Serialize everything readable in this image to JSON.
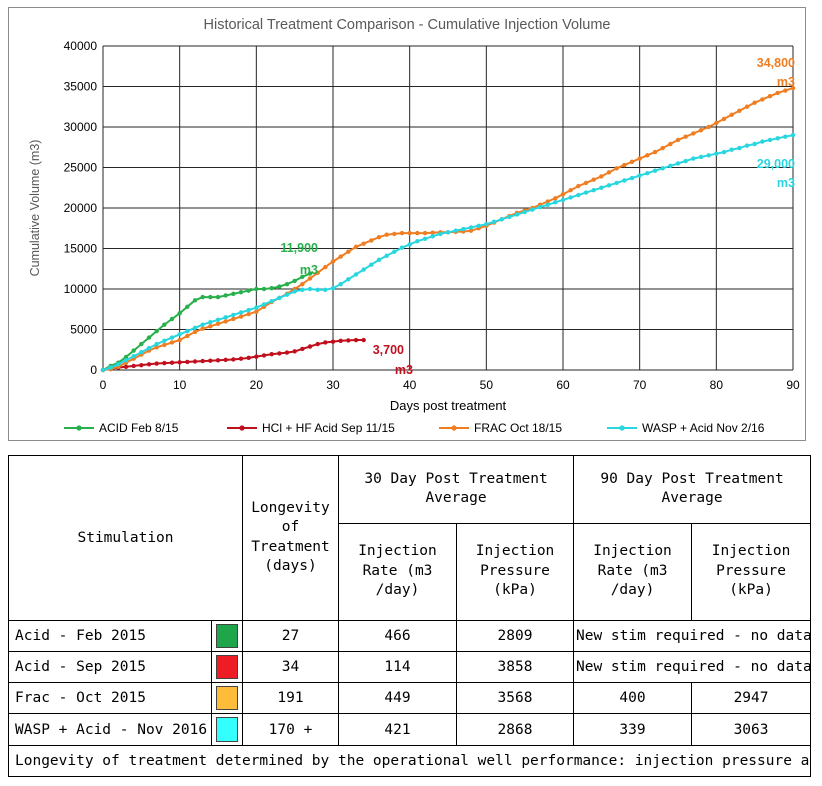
{
  "chart_data": {
    "type": "line",
    "title": "Historical Treatment Comparison - Cumulative Injection Volume",
    "xlabel": "Days post treatment",
    "ylabel": "Cumulative Volume (m3)",
    "xlim": [
      0,
      90
    ],
    "ylim": [
      0,
      40000
    ],
    "xticks": [
      0,
      10,
      20,
      30,
      40,
      50,
      60,
      70,
      80,
      90
    ],
    "yticks": [
      0,
      5000,
      10000,
      15000,
      20000,
      25000,
      30000,
      35000,
      40000
    ],
    "grid": true,
    "legend_position": "bottom",
    "series": [
      {
        "name": "ACID Feb 8/15",
        "color": "#27b04b",
        "x": [
          0,
          1,
          2,
          3,
          4,
          5,
          6,
          7,
          8,
          9,
          10,
          11,
          12,
          13,
          14,
          15,
          16,
          17,
          18,
          19,
          20,
          21,
          22,
          23,
          24,
          25,
          26,
          27
        ],
        "y": [
          0,
          500,
          900,
          1600,
          2400,
          3200,
          4000,
          4800,
          5600,
          6300,
          7000,
          7800,
          8600,
          9000,
          9000,
          9000,
          9200,
          9400,
          9600,
          9800,
          10000,
          10000,
          10100,
          10300,
          10600,
          11000,
          11500,
          11900
        ],
        "end_label": [
          "11,900",
          "m3"
        ]
      },
      {
        "name": "HCl + HF Acid Sep 11/15",
        "color": "#c0101e",
        "x": [
          0,
          1,
          2,
          3,
          4,
          5,
          6,
          7,
          8,
          9,
          10,
          11,
          12,
          13,
          14,
          15,
          16,
          17,
          18,
          19,
          20,
          21,
          22,
          23,
          24,
          25,
          26,
          27,
          28,
          29,
          30,
          31,
          32,
          33,
          34
        ],
        "y": [
          0,
          150,
          300,
          400,
          500,
          600,
          700,
          800,
          850,
          900,
          950,
          1000,
          1050,
          1100,
          1150,
          1200,
          1250,
          1300,
          1400,
          1500,
          1650,
          1800,
          1950,
          2050,
          2150,
          2300,
          2600,
          2900,
          3200,
          3400,
          3500,
          3600,
          3650,
          3700,
          3700
        ],
        "end_label": [
          "3,700",
          "m3"
        ]
      },
      {
        "name": "FRAC Oct 18/15",
        "color": "#ef7d22",
        "x": [
          0,
          1,
          2,
          3,
          4,
          5,
          6,
          7,
          8,
          9,
          10,
          11,
          12,
          13,
          14,
          15,
          16,
          17,
          18,
          19,
          20,
          21,
          22,
          23,
          24,
          25,
          26,
          27,
          28,
          29,
          30,
          31,
          32,
          33,
          34,
          35,
          36,
          37,
          38,
          39,
          40,
          41,
          42,
          43,
          44,
          45,
          46,
          47,
          48,
          49,
          50,
          51,
          52,
          53,
          54,
          55,
          56,
          57,
          58,
          59,
          60,
          61,
          62,
          63,
          64,
          65,
          66,
          67,
          68,
          69,
          70,
          71,
          72,
          73,
          74,
          75,
          76,
          77,
          78,
          79,
          80,
          81,
          82,
          83,
          84,
          85,
          86,
          87,
          88,
          89,
          90
        ],
        "y": [
          0,
          100,
          400,
          900,
          1400,
          1900,
          2400,
          2800,
          3100,
          3400,
          3700,
          4200,
          4700,
          5100,
          5400,
          5700,
          6000,
          6300,
          6600,
          6900,
          7200,
          7800,
          8400,
          8900,
          9400,
          10000,
          10600,
          11300,
          12000,
          12700,
          13400,
          14000,
          14600,
          15200,
          15600,
          16000,
          16400,
          16700,
          16800,
          16900,
          16900,
          16900,
          16900,
          16950,
          17000,
          17000,
          17050,
          17100,
          17200,
          17500,
          17800,
          18200,
          18600,
          19000,
          19400,
          19700,
          20000,
          20400,
          20800,
          21200,
          21700,
          22200,
          22700,
          23100,
          23500,
          23900,
          24400,
          24900,
          25300,
          25700,
          26100,
          26500,
          26900,
          27400,
          27900,
          28400,
          28800,
          29200,
          29600,
          30000,
          30500,
          31000,
          31500,
          32000,
          32500,
          33000,
          33400,
          33800,
          34200,
          34500,
          34800
        ],
        "end_label": [
          "34,800",
          "m3"
        ]
      },
      {
        "name": "WASP + Acid Nov 2/16",
        "color": "#28d6e0",
        "x": [
          0,
          1,
          2,
          3,
          4,
          5,
          6,
          7,
          8,
          9,
          10,
          11,
          12,
          13,
          14,
          15,
          16,
          17,
          18,
          19,
          20,
          21,
          22,
          23,
          24,
          25,
          26,
          27,
          28,
          29,
          30,
          31,
          32,
          33,
          34,
          35,
          36,
          37,
          38,
          39,
          40,
          41,
          42,
          43,
          44,
          45,
          46,
          47,
          48,
          49,
          50,
          51,
          52,
          53,
          54,
          55,
          56,
          57,
          58,
          59,
          60,
          61,
          62,
          63,
          64,
          65,
          66,
          67,
          68,
          69,
          70,
          71,
          72,
          73,
          74,
          75,
          76,
          77,
          78,
          79,
          80,
          81,
          82,
          83,
          84,
          85,
          86,
          87,
          88,
          89,
          90
        ],
        "y": [
          0,
          300,
          700,
          1200,
          1700,
          2200,
          2700,
          3200,
          3600,
          4000,
          4400,
          4800,
          5200,
          5600,
          5900,
          6200,
          6500,
          6800,
          7100,
          7400,
          7700,
          8100,
          8500,
          8900,
          9300,
          9700,
          9900,
          10000,
          9900,
          9900,
          10100,
          10600,
          11200,
          11800,
          12400,
          13000,
          13600,
          14100,
          14600,
          15100,
          15500,
          15900,
          16200,
          16500,
          16800,
          17000,
          17200,
          17400,
          17600,
          17800,
          18000,
          18300,
          18600,
          18900,
          19200,
          19500,
          19800,
          20100,
          20400,
          20700,
          21000,
          21300,
          21600,
          21900,
          22200,
          22500,
          22800,
          23100,
          23400,
          23700,
          24000,
          24300,
          24600,
          24900,
          25200,
          25500,
          25800,
          26100,
          26300,
          26500,
          26700,
          26900,
          27200,
          27400,
          27700,
          27900,
          28200,
          28400,
          28600,
          28800,
          29000
        ],
        "end_label": [
          "29,000",
          "m3"
        ]
      }
    ]
  },
  "table": {
    "headers": {
      "stimulation": "Stimulation",
      "longevity": "Longevity of Treatment (days)",
      "day30": "30 Day Post Treatment Average",
      "day90": "90 Day Post Treatment Average",
      "rate_30": "Injection Rate (m3 /day)",
      "pressure_30": "Injection Pressure (kPa)",
      "rate_90": "Injection Rate (m3 /day)",
      "pressure_90": "Injection Pressure (kPa)"
    },
    "rows": [
      {
        "name": "Acid - Feb 2015",
        "color": "#1fa64a",
        "longevity": "27",
        "rate30": "466",
        "pressure30": "2809",
        "note90": "New stim required - no data"
      },
      {
        "name": "Acid - Sep 2015",
        "color": "#ee1c24",
        "longevity": "34",
        "rate30": "114",
        "pressure30": "3858",
        "note90": "New stim required - no data"
      },
      {
        "name": "Frac - Oct 2015",
        "color": "#fdbd3a",
        "longevity": "191",
        "rate30": "449",
        "pressure30": "3568",
        "rate90": "400",
        "pressure90": "2947"
      },
      {
        "name": "WASP + Acid - Nov 2016",
        "color": "#33ffff",
        "longevity": "170 +",
        "rate30": "421",
        "pressure30": "2868",
        "rate90": "339",
        "pressure90": "3063"
      }
    ],
    "footnote": "Longevity of treatment determined by the operational well performance:  injection pressure and injection rate"
  }
}
